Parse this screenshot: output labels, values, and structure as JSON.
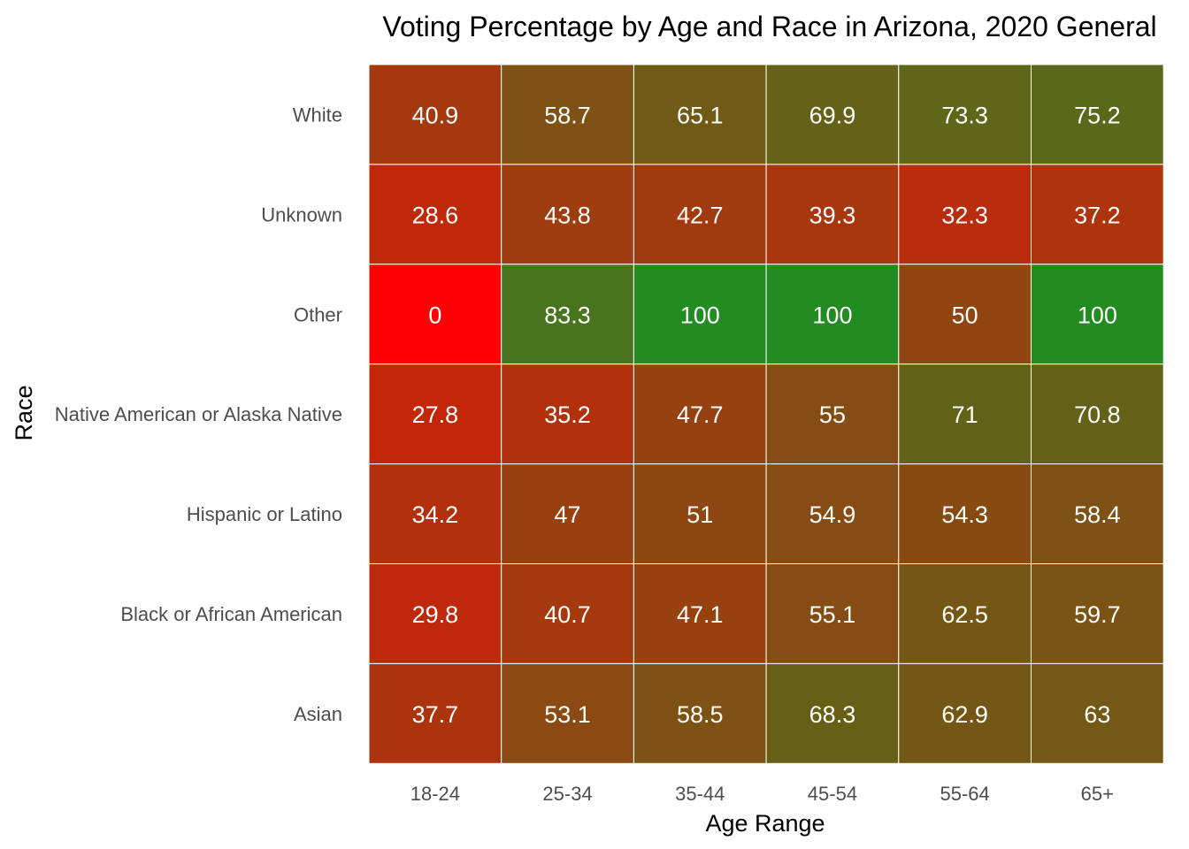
{
  "chart_data": {
    "type": "heatmap",
    "title": "Voting Percentage by Age and Race in Arizona, 2020 General",
    "xlabel": "Age Range",
    "ylabel": "Race",
    "x_categories": [
      "18-24",
      "25-34",
      "35-44",
      "45-54",
      "55-64",
      "65+"
    ],
    "y_categories": [
      "White",
      "Unknown",
      "Other",
      "Native American or Alaska Native",
      "Hispanic or Latino",
      "Black or African American",
      "Asian"
    ],
    "values": [
      [
        40.9,
        58.7,
        65.1,
        69.9,
        73.3,
        75.2
      ],
      [
        28.6,
        43.8,
        42.7,
        39.3,
        32.3,
        37.2
      ],
      [
        0,
        83.3,
        100,
        100,
        50,
        100
      ],
      [
        27.8,
        35.2,
        47.7,
        55,
        71,
        70.8
      ],
      [
        34.2,
        47,
        51,
        54.9,
        54.3,
        58.4
      ],
      [
        29.8,
        40.7,
        47.1,
        55.1,
        62.5,
        59.7
      ],
      [
        37.7,
        53.1,
        58.5,
        68.3,
        62.9,
        63
      ]
    ],
    "color_scale": {
      "low": "#ff0000",
      "high": "#228b22",
      "domain": [
        0,
        100
      ]
    },
    "cell_border_color": "#ffffff",
    "cell_label_color": "#ffffff"
  }
}
